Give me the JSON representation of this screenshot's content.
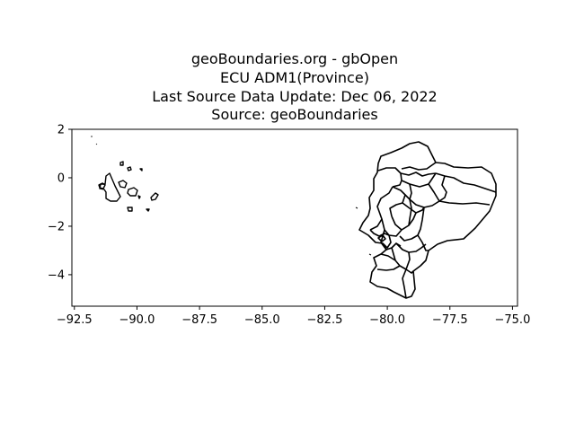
{
  "title": {
    "line1": "geoBoundaries.org - gbOpen",
    "line2": "ECU ADM1(Province)",
    "line3": "Last Source Data Update: Dec 06, 2022",
    "line4": "Source: geoBoundaries"
  },
  "chart_data": {
    "type": "map",
    "region": "Ecuador",
    "admin_level": "ADM1 (Province)",
    "xlim": [
      -92.6,
      -74.8
    ],
    "ylim": [
      -5.3,
      2.0
    ],
    "x_ticks": [
      -92.5,
      -90.0,
      -87.5,
      -85.0,
      -82.5,
      -80.0,
      -77.5,
      -75.0
    ],
    "x_tick_labels": [
      "−92.5",
      "−90.0",
      "−87.5",
      "−85.0",
      "−82.5",
      "−80.0",
      "−77.5",
      "−75.0"
    ],
    "y_ticks": [
      2,
      0,
      -2,
      -4
    ],
    "y_tick_labels": [
      "2",
      "0",
      "−2",
      "−4"
    ],
    "grid": false,
    "features": [
      "mainland provinces",
      "Galápagos Islands"
    ]
  }
}
